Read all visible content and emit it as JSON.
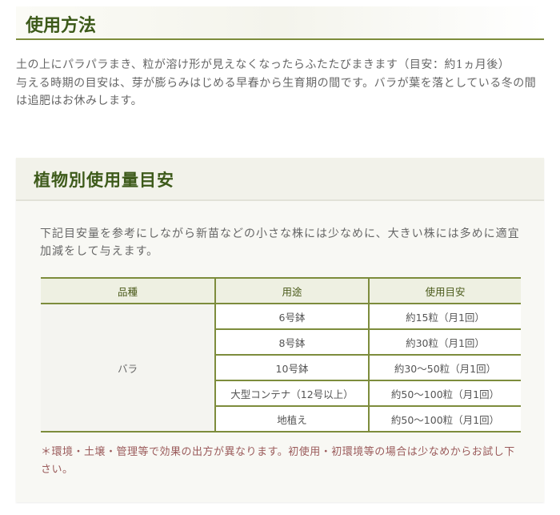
{
  "usage_section": {
    "title": "使用方法",
    "paragraphs": [
      "土の上にパラパラまき、粒が溶け形が見えなくなったらふたたびまきます（目安：約1ヵ月後）",
      "与える時期の目安は、芽が膨らみはじめる早春から生育期の間です。バラが葉を落としている冬の間は追肥はお休みします。"
    ]
  },
  "amount_section": {
    "title": "植物別使用量目安",
    "intro": "下記目安量を参考にしながら新苗などの小さな株には少なめに、大きい株には多めに適宜加減をして与えます。",
    "table": {
      "headers": [
        "品種",
        "用途",
        "使用目安"
      ],
      "variety": "バラ",
      "rows": [
        {
          "use": "6号鉢",
          "amount": "約15粒（月1回）"
        },
        {
          "use": "8号鉢",
          "amount": "約30粒（月1回）"
        },
        {
          "use": "10号鉢",
          "amount": "約30～50粒（月1回）"
        },
        {
          "use": "大型コンテナ（12号以上）",
          "amount": "約50～100粒（月1回）"
        },
        {
          "use": "地植え",
          "amount": "約50～100粒（月1回）"
        }
      ]
    },
    "note": "＊環境・土壌・管理等で効果の出方が異なります。初使用・初環境等の場合は少なめからお試し下さい。"
  },
  "colors": {
    "accent": "#7d8c3c",
    "heading": "#3d5a1a",
    "note": "#9a5a5a"
  }
}
